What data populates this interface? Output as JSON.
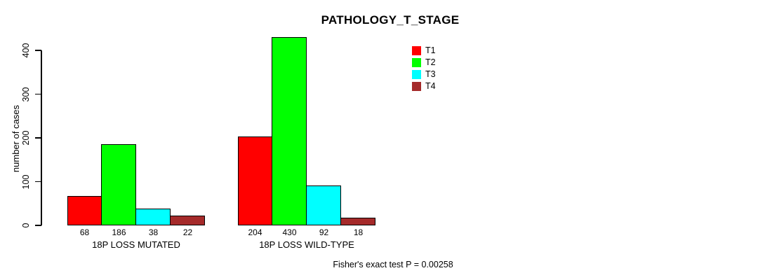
{
  "chart_data": {
    "type": "bar",
    "title": "PATHOLOGY_T_STAGE",
    "ylabel": "number of cases",
    "xlabel": "",
    "categories": [
      "18P LOSS MUTATED",
      "18P LOSS WILD-TYPE"
    ],
    "series": [
      {
        "name": "T1",
        "color": "#ff0000",
        "values": [
          68,
          204
        ]
      },
      {
        "name": "T2",
        "color": "#00ff00",
        "values": [
          186,
          430
        ]
      },
      {
        "name": "T3",
        "color": "#00ffff",
        "values": [
          38,
          92
        ]
      },
      {
        "name": "T4",
        "color": "#a52a2a",
        "values": [
          22,
          18
        ]
      }
    ],
    "yticks": [
      0,
      100,
      200,
      300,
      400
    ],
    "ylim": [
      0,
      400
    ],
    "bar_value_labels_shown": true,
    "bar_outline_color": "#000000",
    "grid": false,
    "legend": {
      "position": "top-right",
      "entries": [
        "T1",
        "T2",
        "T3",
        "T4"
      ]
    },
    "annotation": "Fisher's exact test P = 0.00258"
  }
}
